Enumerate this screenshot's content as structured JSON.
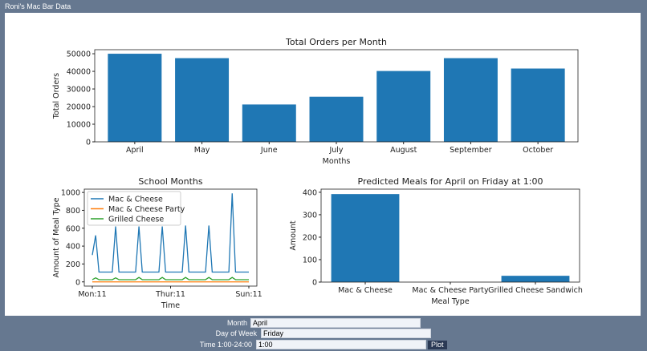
{
  "window": {
    "title": "Roni's Mac Bar Data"
  },
  "form": {
    "month_label": "Month",
    "month_value": "April",
    "day_label": "Day of Week",
    "day_value": "Friday",
    "time_label": "Time 1:00-24:00",
    "time_value": "1:00",
    "plot_label": "Plot"
  },
  "colors": {
    "bar": "#1f77b4",
    "series": [
      "#1f77b4",
      "#ff7f0e",
      "#2ca02c"
    ]
  },
  "chart_data": [
    {
      "type": "bar",
      "title": "Total Orders per Month",
      "xlabel": "Months",
      "ylabel": "Total Orders",
      "categories": [
        "April",
        "May",
        "June",
        "July",
        "August",
        "September",
        "October"
      ],
      "values": [
        50000,
        47500,
        21200,
        25600,
        40200,
        47500,
        41600
      ],
      "ylim": [
        0,
        52300
      ],
      "yticks": [
        0,
        10000,
        20000,
        30000,
        40000,
        50000
      ]
    },
    {
      "type": "line",
      "title": "School Months",
      "xlabel": "Time",
      "ylabel": "Amount of Meal Type",
      "xticks": [
        {
          "index": 0,
          "label": "Mon:11"
        },
        {
          "index": 23.5,
          "label": "Thur:11"
        },
        {
          "index": 47,
          "label": "Sun:11"
        }
      ],
      "ylim": [
        -47,
        1037
      ],
      "yticks": [
        0,
        200,
        400,
        600,
        800,
        1000
      ],
      "legend": "top-left",
      "series": [
        {
          "name": "Mac & Cheese",
          "values": [
            300,
            520,
            110,
            110,
            110,
            110,
            110,
            620,
            110,
            110,
            110,
            110,
            110,
            110,
            620,
            110,
            110,
            110,
            110,
            110,
            110,
            620,
            110,
            110,
            110,
            110,
            110,
            110,
            630,
            110,
            110,
            110,
            110,
            110,
            110,
            630,
            110,
            110,
            110,
            110,
            110,
            110,
            990,
            110,
            110,
            110,
            110,
            110
          ]
        },
        {
          "name": "Mac & Cheese Party",
          "values": [
            0,
            0,
            0,
            0,
            0,
            0,
            0,
            0,
            0,
            0,
            0,
            0,
            0,
            0,
            0,
            0,
            0,
            0,
            0,
            0,
            0,
            0,
            0,
            0,
            0,
            0,
            0,
            0,
            0,
            0,
            0,
            0,
            0,
            0,
            0,
            0,
            0,
            0,
            0,
            0,
            0,
            0,
            0,
            0,
            0,
            0,
            0,
            0
          ]
        },
        {
          "name": "Grilled Cheese",
          "values": [
            25,
            45,
            25,
            25,
            25,
            25,
            25,
            45,
            25,
            25,
            25,
            25,
            25,
            25,
            50,
            25,
            25,
            25,
            25,
            25,
            25,
            50,
            25,
            25,
            25,
            25,
            25,
            25,
            50,
            25,
            25,
            25,
            25,
            25,
            25,
            50,
            25,
            25,
            25,
            25,
            25,
            25,
            50,
            25,
            25,
            25,
            25,
            25
          ]
        }
      ]
    },
    {
      "type": "bar",
      "title": "Predicted Meals for April on Friday at 1:00",
      "xlabel": "Meal Type",
      "ylabel": "Amount",
      "categories": [
        "Mac & Cheese",
        "Mac & Cheese Party",
        "Grilled Cheese Sandwich"
      ],
      "values": [
        392,
        0,
        28
      ],
      "ylim": [
        0,
        414
      ],
      "yticks": [
        0,
        100,
        200,
        300,
        400
      ]
    }
  ]
}
